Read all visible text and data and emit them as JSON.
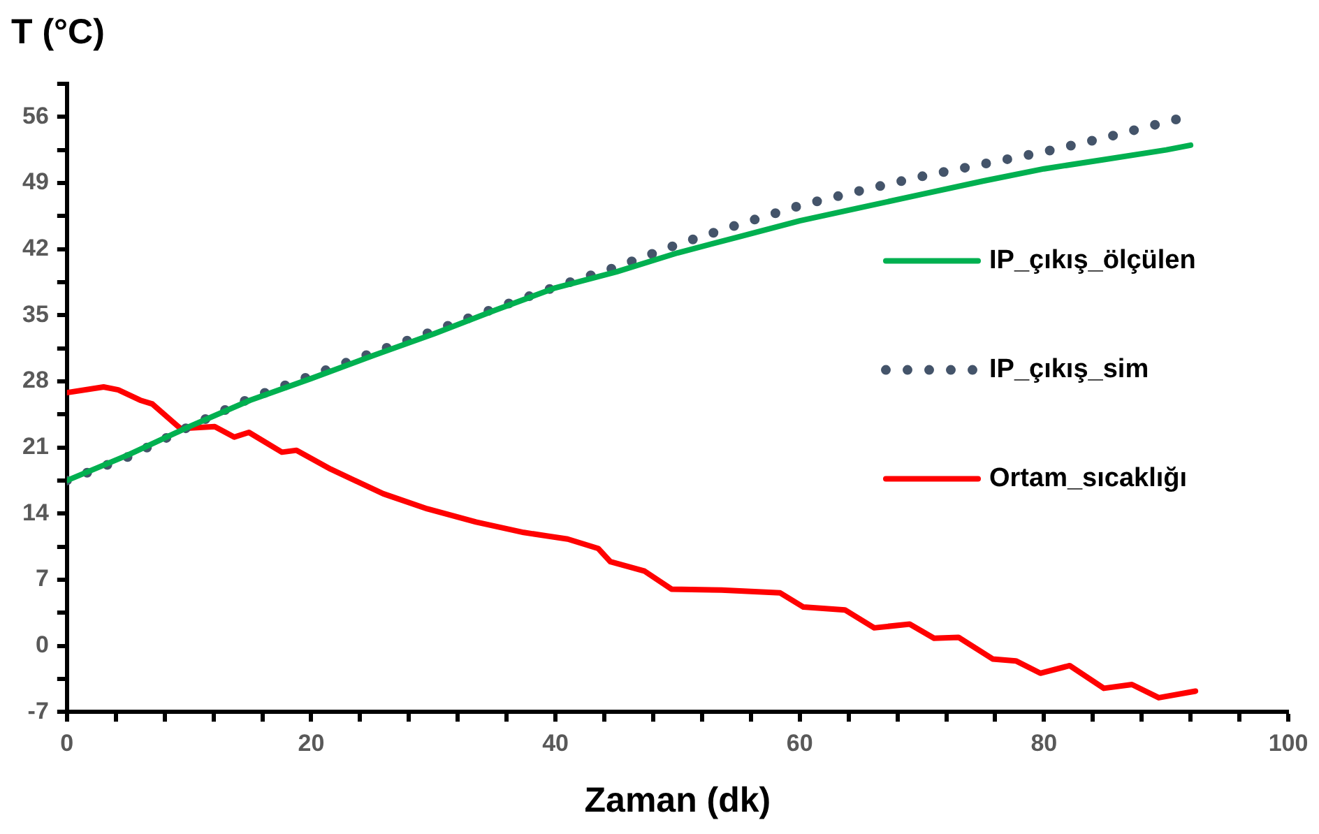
{
  "chart_data": {
    "type": "line",
    "ylabel": "T (°C)",
    "xlabel": "Zaman (dk)",
    "xlim": [
      0,
      100
    ],
    "xticks": [
      0,
      {
        "value": 4,
        "label": null
      },
      {
        "value": 8,
        "label": null
      },
      {
        "value": 12,
        "label": null
      },
      {
        "value": 16,
        "label": null
      },
      20,
      {
        "value": 24,
        "label": null
      },
      {
        "value": 28,
        "label": null
      },
      {
        "value": 32,
        "label": null
      },
      {
        "value": 36,
        "label": null
      },
      40,
      {
        "value": 44,
        "label": null
      },
      {
        "value": 48,
        "label": null
      },
      {
        "value": 52,
        "label": null
      },
      {
        "value": 56,
        "label": null
      },
      60,
      {
        "value": 64,
        "label": null
      },
      {
        "value": 68,
        "label": null
      },
      {
        "value": 72,
        "label": null
      },
      {
        "value": 76,
        "label": null
      },
      80,
      {
        "value": 84,
        "label": null
      },
      {
        "value": 88,
        "label": null
      },
      {
        "value": 92,
        "label": null
      },
      {
        "value": 96,
        "label": null
      },
      100
    ],
    "ylim": [
      -7,
      59.5
    ],
    "yticks": [
      -7,
      {
        "value": -3.5,
        "label": null
      },
      0,
      {
        "value": 3.5,
        "label": null
      },
      7,
      {
        "value": 10.5,
        "label": null
      },
      14,
      {
        "value": 17.5,
        "label": null
      },
      21,
      {
        "value": 24.5,
        "label": null
      },
      28,
      {
        "value": 31.5,
        "label": null
      },
      35,
      {
        "value": 38.5,
        "label": null
      },
      42,
      {
        "value": 45.5,
        "label": null
      },
      49,
      {
        "value": 52.5,
        "label": null
      },
      56,
      {
        "value": 59.5,
        "label": null
      }
    ],
    "grid": false,
    "legend": "right",
    "series": [
      {
        "name": "IP_çıkış_ölçülen",
        "color": "#00b050",
        "line_style": "solid",
        "x": [
          0,
          5,
          10,
          15,
          20,
          25,
          30,
          35,
          40,
          45,
          50,
          55,
          60,
          65,
          70,
          75,
          80,
          85,
          90,
          92
        ],
        "values": [
          17.5,
          20.2,
          23.2,
          26,
          28.3,
          30.7,
          33,
          35.5,
          37.9,
          39.6,
          41.6,
          43.3,
          45,
          46.4,
          47.8,
          49.2,
          50.5,
          51.5,
          52.5,
          53
        ]
      },
      {
        "name": "IP_çıkış_sim",
        "color": "#44546a",
        "line_style": "dotted",
        "x": [
          0,
          5,
          10,
          15,
          20,
          25,
          30,
          35,
          40,
          45,
          50,
          55,
          60,
          65,
          70,
          75,
          80,
          85,
          91
        ],
        "values": [
          17.5,
          20,
          23.2,
          26.2,
          28.6,
          31,
          33.3,
          35.7,
          38,
          40.1,
          42.5,
          44.6,
          46.6,
          48.2,
          49.7,
          51,
          52.3,
          53.8,
          55.8
        ]
      },
      {
        "name": "Ortam_sıcaklığı",
        "color": "#ff0000",
        "line_style": "solid",
        "x": [
          0,
          3,
          4.2,
          6,
          7,
          9.3,
          12.1,
          13.7,
          14.9,
          17.6,
          18.8,
          21.6,
          25.9,
          29.5,
          33.5,
          37.4,
          41,
          43.5,
          44.5,
          47.3,
          49.5,
          53.6,
          58.4,
          60.3,
          63.7,
          66.1,
          69,
          71,
          73,
          75.8,
          77.7,
          79.7,
          82.1,
          84.9,
          87.2,
          89.4,
          92.4
        ],
        "values": [
          26.8,
          27.4,
          27.1,
          26,
          25.6,
          23,
          23.2,
          22.1,
          22.6,
          20.5,
          20.7,
          18.7,
          16.1,
          14.5,
          13.1,
          12,
          11.3,
          10.3,
          8.9,
          7.9,
          6,
          5.9,
          5.6,
          4.1,
          3.8,
          1.9,
          2.3,
          0.8,
          0.9,
          -1.4,
          -1.6,
          -2.9,
          -2.1,
          -4.5,
          -4.1,
          -5.5,
          -4.8
        ]
      }
    ]
  }
}
